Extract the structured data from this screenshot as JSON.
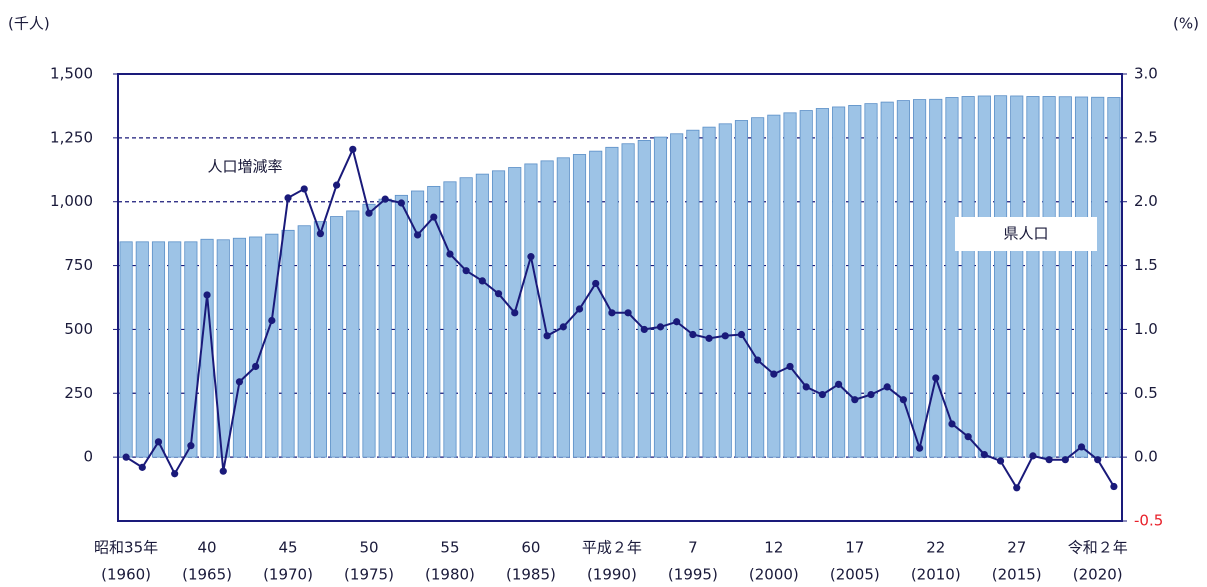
{
  "chart_data": {
    "type": "bar-line",
    "y_unit": "(千人)",
    "y2_unit": "(%)",
    "categories": [
      "昭和35年",
      null,
      null,
      null,
      null,
      "40",
      null,
      null,
      null,
      null,
      "45",
      null,
      null,
      null,
      null,
      "50",
      null,
      null,
      null,
      null,
      "55",
      null,
      null,
      null,
      null,
      "60",
      null,
      null,
      null,
      null,
      "平成２年",
      null,
      null,
      null,
      null,
      "7",
      null,
      null,
      null,
      null,
      "12",
      null,
      null,
      null,
      null,
      "17",
      null,
      null,
      null,
      null,
      "22",
      null,
      null,
      null,
      null,
      "27",
      null,
      null,
      null,
      null,
      "令和２年",
      null
    ],
    "category_years": [
      "(1960)",
      null,
      null,
      null,
      null,
      "(1965)",
      null,
      null,
      null,
      null,
      "(1970)",
      null,
      null,
      null,
      null,
      "(1975)",
      null,
      null,
      null,
      null,
      "(1980)",
      null,
      null,
      null,
      null,
      "(1985)",
      null,
      null,
      null,
      null,
      "(1990)",
      null,
      null,
      null,
      null,
      "(1995)",
      null,
      null,
      null,
      null,
      "(2000)",
      null,
      null,
      null,
      null,
      "(2005)",
      null,
      null,
      null,
      null,
      "(2010)",
      null,
      null,
      null,
      null,
      "(2015)",
      null,
      null,
      null,
      null,
      "(2020)",
      null
    ],
    "series": [
      {
        "name": "県人口",
        "type": "bar",
        "color": "#9dc3e6",
        "edge_color": "#5b8fc7",
        "values": [
          843,
          843,
          843,
          843,
          843,
          853,
          851,
          857,
          862,
          873,
          888,
          906,
          922,
          942,
          964,
          990,
          1010,
          1025,
          1042,
          1060,
          1078,
          1094,
          1108,
          1121,
          1134,
          1148,
          1160,
          1172,
          1185,
          1198,
          1213,
          1227,
          1240,
          1253,
          1266,
          1280,
          1292,
          1305,
          1318,
          1329,
          1339,
          1348,
          1357,
          1365,
          1371,
          1377,
          1384,
          1390,
          1396,
          1400,
          1401,
          1408,
          1412,
          1414,
          1415,
          1414,
          1412,
          1412,
          1411,
          1410,
          1409,
          1408
        ]
      },
      {
        "name": "人口増減率",
        "type": "line",
        "axis": "y2",
        "color": "#1a1a7a",
        "values": [
          0.0,
          -0.08,
          0.12,
          -0.13,
          0.09,
          1.27,
          -0.11,
          0.59,
          0.71,
          1.07,
          2.03,
          2.1,
          1.75,
          2.13,
          2.41,
          1.91,
          2.02,
          1.99,
          1.74,
          1.88,
          1.59,
          1.46,
          1.38,
          1.28,
          1.13,
          1.57,
          0.95,
          1.02,
          1.16,
          1.36,
          1.13,
          1.13,
          1.0,
          1.02,
          1.06,
          0.96,
          0.93,
          0.95,
          0.96,
          0.76,
          0.65,
          0.71,
          0.55,
          0.49,
          0.57,
          0.45,
          0.49,
          0.55,
          0.45,
          0.07,
          0.62,
          0.26,
          0.16,
          0.02,
          -0.03,
          -0.24,
          0.01,
          -0.02,
          -0.02,
          0.08,
          -0.02,
          -0.23
        ]
      }
    ],
    "ylim": [
      -250,
      1500
    ],
    "yticks": [
      0,
      250,
      500,
      750,
      {
        "value": 1000,
        "label": "1,000"
      },
      {
        "value": 1250,
        "label": "1,250"
      },
      {
        "value": 1500,
        "label": "1,500"
      }
    ],
    "y2lim": [
      -0.5,
      3.0
    ],
    "y2ticks": [
      {
        "value": -0.5,
        "label": "-0.5"
      },
      {
        "value": 0,
        "label": "0.0"
      },
      {
        "value": 0.5,
        "label": "0.5"
      },
      {
        "value": 1,
        "label": "1.0"
      },
      {
        "value": 1.5,
        "label": "1.5"
      },
      {
        "value": 2,
        "label": "2.0"
      },
      {
        "value": 2.5,
        "label": "2.5"
      },
      {
        "value": 3,
        "label": "3.0"
      }
    ],
    "negative_tick_color": "#e8202a",
    "grid": true,
    "grid_style": "dashed",
    "axis_color": "#1a1a7a"
  }
}
